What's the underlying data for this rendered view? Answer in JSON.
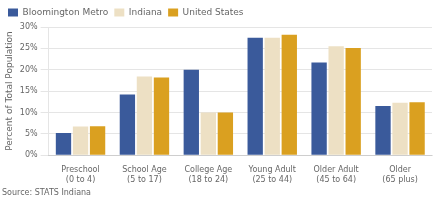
{
  "chart_data": {
    "type": "bar",
    "categories": [
      "Preschool\n(0 to 4)",
      "School Age\n(5 to 17)",
      "College Age\n(18 to 24)",
      "Young Adult\n(25 to 44)",
      "Older Adult\n(45 to 64)",
      "Older\n(65 plus)"
    ],
    "series": [
      {
        "name": "Bloomington Metro",
        "color": "#3A5A9B",
        "values": [
          5.2,
          14.2,
          20.0,
          27.5,
          21.7,
          11.5
        ]
      },
      {
        "name": "Indiana",
        "color": "#EDE0C4",
        "values": [
          6.7,
          18.4,
          10.0,
          27.5,
          25.5,
          12.3
        ]
      },
      {
        "name": "United States",
        "color": "#DAA020",
        "values": [
          6.8,
          18.2,
          10.0,
          28.2,
          25.1,
          12.4
        ]
      }
    ],
    "ylabel": "Percent of Total Population",
    "annotations": [
      "Source: STATS Indiana"
    ],
    "ylim": [
      0,
      30
    ],
    "yticks": [
      {
        "value": 0,
        "label": "0%"
      },
      {
        "value": 5,
        "label": "5%"
      },
      {
        "value": 10,
        "label": "10%"
      },
      {
        "value": 15,
        "label": "15%"
      },
      {
        "value": 20,
        "label": "20%"
      },
      {
        "value": 25,
        "label": "25%"
      },
      {
        "value": 30,
        "label": "30%"
      }
    ],
    "grid": true,
    "legend": "upper left"
  }
}
